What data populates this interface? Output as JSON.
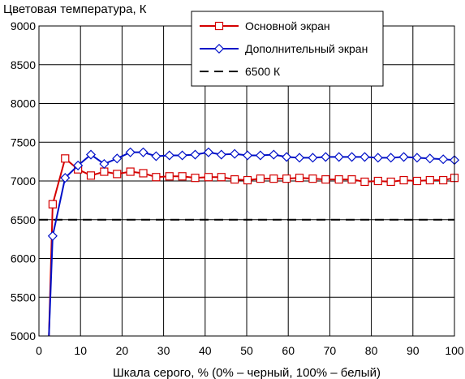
{
  "chart_data": {
    "type": "line",
    "ylabel": "Цветовая температура, К",
    "xlabel": "Шкала серого, % (0% – черный, 100% – белый)",
    "xlim": [
      0,
      100
    ],
    "ylim": [
      5000,
      9000
    ],
    "x_ticks": [
      0,
      10,
      20,
      30,
      40,
      50,
      60,
      70,
      80,
      90,
      100
    ],
    "y_ticks": [
      5000,
      5500,
      6000,
      6500,
      7000,
      7500,
      8000,
      8500,
      9000
    ],
    "grid": true,
    "legend_position": "top-right",
    "reference_lines": [
      {
        "name": "6500 К",
        "y": 6500,
        "color": "#000000",
        "dash": true
      }
    ],
    "series": [
      {
        "name": "Основной экран",
        "color": "#d40000",
        "marker": "square",
        "x": [
          2.4,
          3.3,
          6.3,
          9.4,
          12.5,
          15.7,
          18.8,
          22.0,
          25.1,
          28.2,
          31.4,
          34.5,
          37.6,
          40.8,
          43.9,
          47.1,
          50.2,
          53.3,
          56.5,
          59.6,
          62.7,
          65.9,
          69.0,
          72.2,
          75.3,
          78.4,
          81.6,
          84.7,
          87.8,
          91.0,
          94.1,
          97.3,
          100
        ],
        "y": [
          4980,
          6700,
          7290,
          7150,
          7070,
          7120,
          7090,
          7120,
          7100,
          7050,
          7060,
          7060,
          7040,
          7050,
          7050,
          7020,
          7010,
          7030,
          7030,
          7030,
          7040,
          7030,
          7020,
          7020,
          7020,
          6990,
          7000,
          6990,
          7010,
          7000,
          7010,
          7010,
          7040
        ]
      },
      {
        "name": "Дополнительный экран",
        "color": "#0010c8",
        "marker": "diamond",
        "x": [
          2.4,
          3.3,
          6.3,
          9.4,
          12.5,
          15.7,
          18.8,
          22.0,
          25.1,
          28.2,
          31.4,
          34.5,
          37.6,
          40.8,
          43.9,
          47.1,
          50.2,
          53.3,
          56.5,
          59.6,
          62.7,
          65.9,
          69.0,
          72.2,
          75.3,
          78.4,
          81.6,
          84.7,
          87.8,
          91.0,
          94.1,
          97.3,
          100
        ],
        "y": [
          4980,
          6290,
          7040,
          7200,
          7340,
          7220,
          7290,
          7370,
          7370,
          7320,
          7330,
          7330,
          7340,
          7370,
          7340,
          7350,
          7330,
          7330,
          7340,
          7310,
          7300,
          7300,
          7310,
          7310,
          7310,
          7310,
          7300,
          7300,
          7310,
          7300,
          7290,
          7280,
          7270
        ]
      }
    ]
  }
}
